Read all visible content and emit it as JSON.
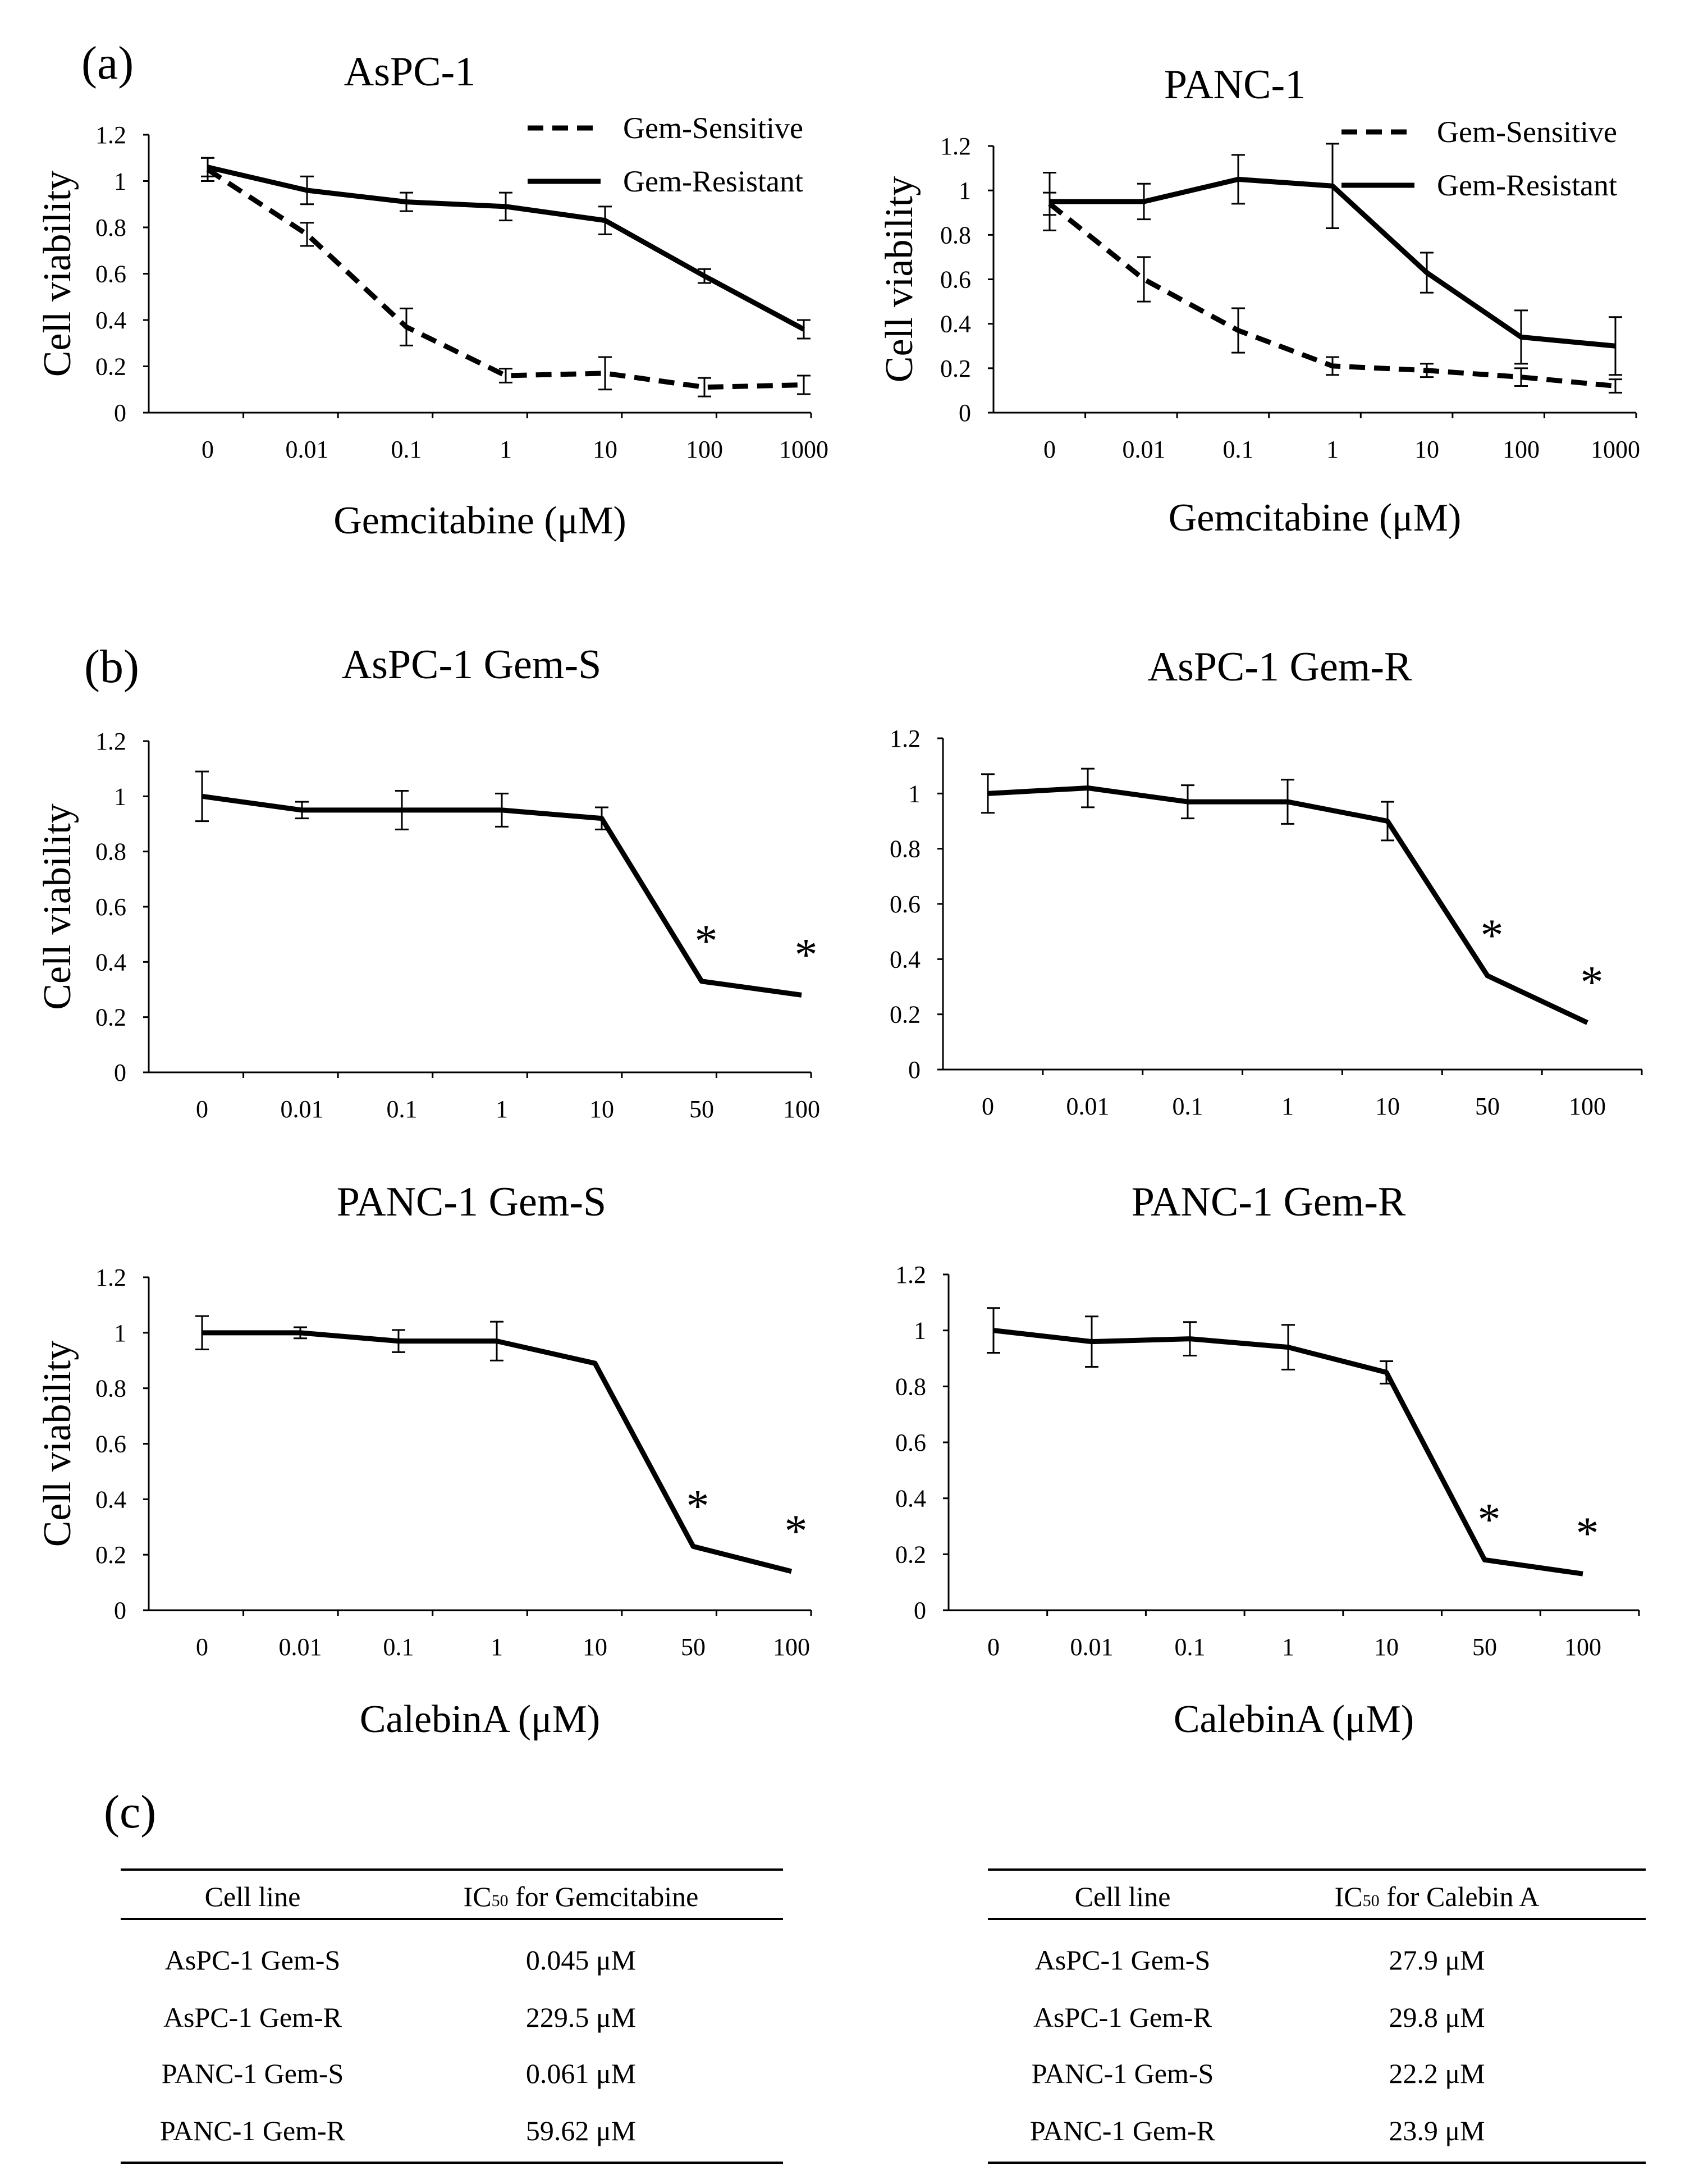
{
  "panel_labels": {
    "a": "(a)",
    "b": "(b)",
    "c": "(c)"
  },
  "axis_titles": {
    "gemcitabine": "Gemcitabine  (μM)",
    "calebin": "CalebinA (μM)"
  },
  "chart_data": [
    {
      "type": "line",
      "title": "AsPC-1",
      "xlabel": "Gemcitabine  (μM)",
      "ylabel": "Cell viability",
      "categories": [
        "0",
        "0.01",
        "0.1",
        "1",
        "10",
        "100",
        "1000"
      ],
      "ylim": [
        0,
        1.2
      ],
      "yticks": [
        "0",
        "0.2",
        "0.4",
        "0.6",
        "0.8",
        "1",
        "1.2"
      ],
      "legend": "top-right",
      "series": [
        {
          "name": "Gem-Sensitive",
          "style": "dashed",
          "values": [
            1.05,
            0.77,
            0.37,
            0.16,
            0.17,
            0.11,
            0.12
          ],
          "errors": [
            0.05,
            0.05,
            0.08,
            0.03,
            0.07,
            0.04,
            0.04
          ]
        },
        {
          "name": "Gem-Resistant",
          "style": "solid",
          "values": [
            1.06,
            0.96,
            0.91,
            0.89,
            0.83,
            0.59,
            0.36
          ],
          "errors": [
            0.04,
            0.06,
            0.04,
            0.06,
            0.06,
            0.03,
            0.04
          ]
        }
      ]
    },
    {
      "type": "line",
      "title": "PANC-1",
      "xlabel": "Gemcitabine  (μM)",
      "ylabel": "Cell viability",
      "categories": [
        "0",
        "0.01",
        "0.1",
        "1",
        "10",
        "100",
        "1000"
      ],
      "ylim": [
        0,
        1.2
      ],
      "yticks": [
        "0",
        "0.2",
        "0.4",
        "0.6",
        "0.8",
        "1",
        "1.2"
      ],
      "legend": "top-right",
      "series": [
        {
          "name": "Gem-Sensitive",
          "style": "dashed",
          "values": [
            0.94,
            0.6,
            0.37,
            0.21,
            0.19,
            0.16,
            0.12
          ],
          "errors": [
            0.05,
            0.1,
            0.1,
            0.04,
            0.03,
            0.04,
            0.03
          ]
        },
        {
          "name": "Gem-Resistant",
          "style": "solid",
          "values": [
            0.95,
            0.95,
            1.05,
            1.02,
            0.63,
            0.34,
            0.3
          ],
          "errors": [
            0.13,
            0.08,
            0.11,
            0.19,
            0.09,
            0.12,
            0.13
          ]
        }
      ]
    },
    {
      "type": "line",
      "title": "AsPC-1 Gem-S",
      "xlabel": "",
      "ylabel": "Cell viability",
      "categories": [
        "0",
        "0.01",
        "0.1",
        "1",
        "10",
        "50",
        "100"
      ],
      "ylim": [
        0,
        1.2
      ],
      "yticks": [
        "0",
        "0.2",
        "0.4",
        "0.6",
        "0.8",
        "1",
        "1.2"
      ],
      "series": [
        {
          "name": "AsPC-1 Gem-S",
          "style": "solid",
          "values": [
            1.0,
            0.95,
            0.95,
            0.95,
            0.92,
            0.33,
            0.28
          ],
          "errors": [
            0.09,
            0.03,
            0.07,
            0.06,
            0.04,
            0.0,
            0.0
          ]
        }
      ],
      "annotations": [
        {
          "category": "50",
          "text": "*"
        },
        {
          "category": "100",
          "text": "*"
        }
      ]
    },
    {
      "type": "line",
      "title": "AsPC-1 Gem-R",
      "xlabel": "",
      "ylabel": "",
      "categories": [
        "0",
        "0.01",
        "0.1",
        "1",
        "10",
        "50",
        "100"
      ],
      "ylim": [
        0,
        1.2
      ],
      "yticks": [
        "0",
        "0.2",
        "0.4",
        "0.6",
        "0.8",
        "1",
        "1.2"
      ],
      "series": [
        {
          "name": "AsPC-1 Gem-R",
          "style": "solid",
          "values": [
            1.0,
            1.02,
            0.97,
            0.97,
            0.9,
            0.34,
            0.17
          ],
          "errors": [
            0.07,
            0.07,
            0.06,
            0.08,
            0.07,
            0.0,
            0.0
          ]
        }
      ],
      "annotations": [
        {
          "category": "50",
          "text": "*"
        },
        {
          "category": "100",
          "text": "*"
        }
      ]
    },
    {
      "type": "line",
      "title": "PANC-1 Gem-S",
      "xlabel": "CalebinA (μM)",
      "ylabel": "Cell viability",
      "categories": [
        "0",
        "0.01",
        "0.1",
        "1",
        "10",
        "50",
        "100"
      ],
      "ylim": [
        0,
        1.2
      ],
      "yticks": [
        "0",
        "0.2",
        "0.4",
        "0.6",
        "0.8",
        "1",
        "1.2"
      ],
      "series": [
        {
          "name": "PANC-1 Gem-S",
          "style": "solid",
          "values": [
            1.0,
            1.0,
            0.97,
            0.97,
            0.89,
            0.23,
            0.14
          ],
          "errors": [
            0.06,
            0.02,
            0.04,
            0.07,
            0.0,
            0.0,
            0.0
          ]
        }
      ],
      "annotations": [
        {
          "category": "50",
          "text": "*"
        },
        {
          "category": "100",
          "text": "*"
        }
      ]
    },
    {
      "type": "line",
      "title": "PANC-1 Gem-R",
      "xlabel": "CalebinA (μM)",
      "ylabel": "",
      "categories": [
        "0",
        "0.01",
        "0.1",
        "1",
        "10",
        "50",
        "100"
      ],
      "ylim": [
        0,
        1.2
      ],
      "yticks": [
        "0",
        "0.2",
        "0.4",
        "0.6",
        "0.8",
        "1",
        "1.2"
      ],
      "series": [
        {
          "name": "PANC-1 Gem-R",
          "style": "solid",
          "values": [
            1.0,
            0.96,
            0.97,
            0.94,
            0.85,
            0.18,
            0.13
          ],
          "errors": [
            0.08,
            0.09,
            0.06,
            0.08,
            0.04,
            0.0,
            0.0
          ]
        }
      ],
      "annotations": [
        {
          "category": "50",
          "text": "*"
        },
        {
          "category": "100",
          "text": "*"
        }
      ]
    }
  ],
  "tables": [
    {
      "header": {
        "cell_line": "Cell line",
        "ic_prefix": "IC",
        "ic_sub": "50",
        "ic_rest": " for Gemcitabine"
      },
      "rows": [
        {
          "line": "AsPC-1 Gem-S",
          "value": "0.045 μM"
        },
        {
          "line": "AsPC-1 Gem-R",
          "value": "229.5 μM"
        },
        {
          "line": "PANC-1 Gem-S",
          "value": "0.061 μM"
        },
        {
          "line": "PANC-1 Gem-R",
          "value": "59.62 μM"
        }
      ]
    },
    {
      "header": {
        "cell_line": "Cell line",
        "ic_prefix": "IC",
        "ic_sub": "50",
        "ic_rest": " for Calebin A"
      },
      "rows": [
        {
          "line": "AsPC-1 Gem-S",
          "value": "27.9 μM"
        },
        {
          "line": "AsPC-1 Gem-R",
          "value": "29.8 μM"
        },
        {
          "line": "PANC-1 Gem-S",
          "value": "22.2 μM"
        },
        {
          "line": "PANC-1 Gem-R",
          "value": "23.9 μM"
        }
      ]
    }
  ]
}
